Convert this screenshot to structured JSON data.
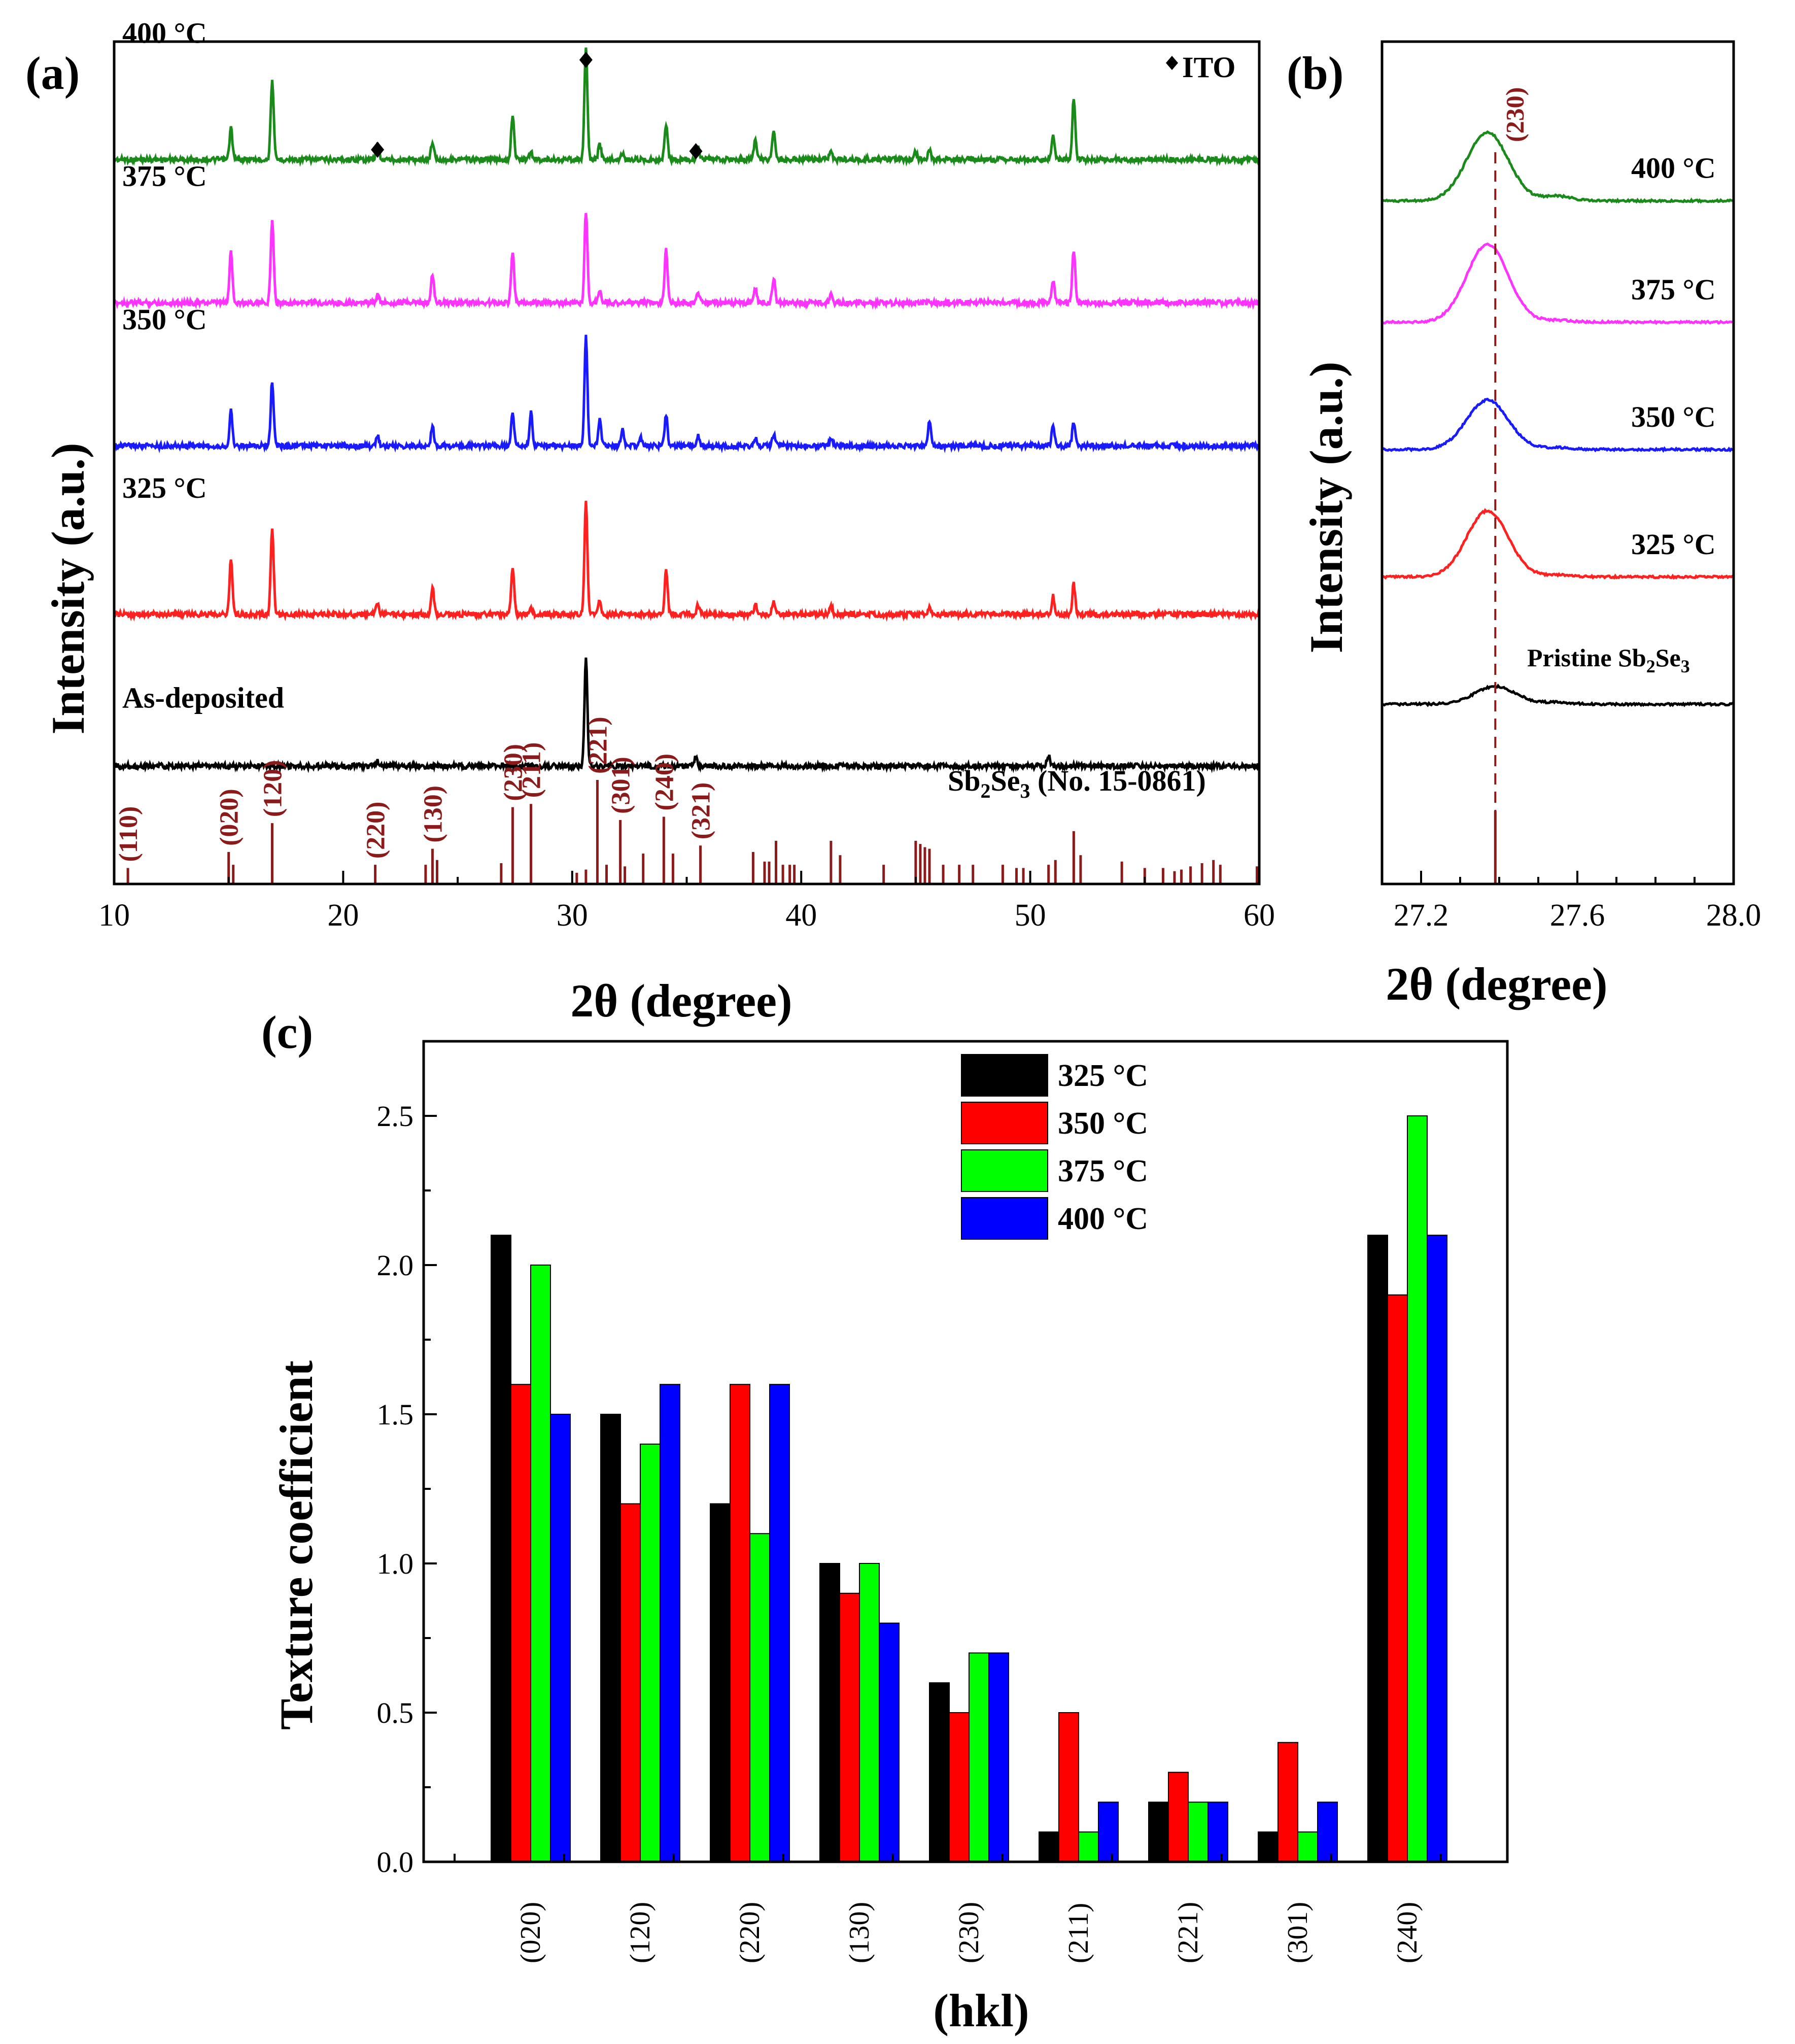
{
  "colors": {
    "black": "#000000",
    "red": "#ff0000",
    "blue": "#0000ff",
    "green": "#00ff00",
    "dark_green": "#1a8a1a",
    "magenta": "#ff33ff",
    "xrd_blue": "#1a1aff",
    "xrd_red": "#ff2020",
    "ref_red": "#8b1a1a"
  },
  "chart_data": [
    {
      "panel": "(a)",
      "type": "line",
      "xlabel": "2θ (degree)",
      "ylabel": "Intensity (a.u.)",
      "xlim": [
        10,
        60
      ],
      "xticks": [
        10,
        20,
        30,
        40,
        50,
        60
      ],
      "ito_legend": "ITO",
      "ito_marker_positions": [
        21.5,
        30.6,
        35.4
      ],
      "series": [
        {
          "name": "400 °C",
          "color": "#1a8a1a",
          "baseline": 0.14,
          "peaks": [
            [
              15.1,
              0.21
            ],
            [
              16.9,
              0.53
            ],
            [
              21.5,
              0.1
            ],
            [
              23.9,
              0.12
            ],
            [
              27.4,
              0.3
            ],
            [
              28.2,
              0.05
            ],
            [
              30.6,
              0.75
            ],
            [
              31.2,
              0.1
            ],
            [
              32.2,
              0.04
            ],
            [
              34.1,
              0.24
            ],
            [
              35.5,
              0.08
            ],
            [
              38.0,
              0.14
            ],
            [
              38.8,
              0.2
            ],
            [
              41.3,
              0.05
            ],
            [
              45.0,
              0.05
            ],
            [
              45.6,
              0.07
            ],
            [
              51.0,
              0.16
            ],
            [
              51.9,
              0.4
            ]
          ]
        },
        {
          "name": "375 °C",
          "color": "#ff33ff",
          "baseline": 0.31,
          "peaks": [
            [
              15.1,
              0.34
            ],
            [
              16.9,
              0.55
            ],
            [
              21.5,
              0.05
            ],
            [
              23.9,
              0.18
            ],
            [
              27.4,
              0.33
            ],
            [
              30.6,
              0.6
            ],
            [
              31.2,
              0.09
            ],
            [
              34.1,
              0.35
            ],
            [
              35.5,
              0.07
            ],
            [
              38.0,
              0.1
            ],
            [
              38.8,
              0.16
            ],
            [
              41.3,
              0.06
            ],
            [
              51.0,
              0.14
            ],
            [
              51.9,
              0.35
            ]
          ]
        },
        {
          "name": "350 °C",
          "color": "#1a1aff",
          "baseline": 0.48,
          "peaks": [
            [
              15.1,
              0.23
            ],
            [
              16.9,
              0.43
            ],
            [
              21.5,
              0.07
            ],
            [
              23.9,
              0.13
            ],
            [
              27.4,
              0.22
            ],
            [
              28.2,
              0.22
            ],
            [
              30.6,
              0.72
            ],
            [
              31.2,
              0.18
            ],
            [
              32.2,
              0.11
            ],
            [
              33.0,
              0.05
            ],
            [
              34.1,
              0.2
            ],
            [
              35.5,
              0.07
            ],
            [
              38.0,
              0.05
            ],
            [
              38.8,
              0.08
            ],
            [
              41.3,
              0.05
            ],
            [
              45.6,
              0.17
            ],
            [
              51.0,
              0.13
            ],
            [
              51.9,
              0.16
            ]
          ]
        },
        {
          "name": "325 °C",
          "color": "#ff2020",
          "baseline": 0.68,
          "peaks": [
            [
              15.1,
              0.37
            ],
            [
              16.9,
              0.57
            ],
            [
              21.5,
              0.07
            ],
            [
              23.9,
              0.18
            ],
            [
              27.4,
              0.31
            ],
            [
              28.2,
              0.04
            ],
            [
              30.6,
              0.75
            ],
            [
              31.2,
              0.1
            ],
            [
              34.1,
              0.29
            ],
            [
              35.5,
              0.06
            ],
            [
              38.0,
              0.06
            ],
            [
              38.8,
              0.08
            ],
            [
              41.3,
              0.06
            ],
            [
              45.6,
              0.05
            ],
            [
              51.0,
              0.12
            ],
            [
              51.9,
              0.2
            ]
          ]
        },
        {
          "name": "As-deposited",
          "color": "#000000",
          "baseline": 0.86,
          "peaks": [
            [
              21.5,
              0.03
            ],
            [
              30.6,
              0.7
            ],
            [
              35.4,
              0.06
            ],
            [
              50.8,
              0.07
            ]
          ]
        }
      ],
      "reference": {
        "label": "Sb2Se3 (No. 15-0861)",
        "label_main": "Sb",
        "label_sub1": "2",
        "label_mid": "Se",
        "label_sub2": "3",
        "label_tail": " (No. 15-0861)",
        "color": "#8b1a1a",
        "lines": [
          [
            10.6,
            0.2
          ],
          [
            15.0,
            0.4
          ],
          [
            15.2,
            0.24
          ],
          [
            16.9,
            0.76
          ],
          [
            21.4,
            0.24
          ],
          [
            23.6,
            0.24
          ],
          [
            23.9,
            0.44
          ],
          [
            24.1,
            0.3
          ],
          [
            26.9,
            0.26
          ],
          [
            27.4,
            0.96
          ],
          [
            28.2,
            1.0
          ],
          [
            30.2,
            0.14
          ],
          [
            30.6,
            0.18
          ],
          [
            31.1,
            1.3
          ],
          [
            31.5,
            0.24
          ],
          [
            32.1,
            0.8
          ],
          [
            32.3,
            0.22
          ],
          [
            33.1,
            0.38
          ],
          [
            34.0,
            0.84
          ],
          [
            34.4,
            0.38
          ],
          [
            35.6,
            0.48
          ],
          [
            37.9,
            0.4
          ],
          [
            38.4,
            0.28
          ],
          [
            38.6,
            0.28
          ],
          [
            38.9,
            0.54
          ],
          [
            39.2,
            0.24
          ],
          [
            39.5,
            0.24
          ],
          [
            39.7,
            0.24
          ],
          [
            41.3,
            0.54
          ],
          [
            41.7,
            0.36
          ],
          [
            43.6,
            0.24
          ],
          [
            45.0,
            0.54
          ],
          [
            45.2,
            0.5
          ],
          [
            45.4,
            0.46
          ],
          [
            45.6,
            0.44
          ],
          [
            46.2,
            0.24
          ],
          [
            46.9,
            0.24
          ],
          [
            47.5,
            0.24
          ],
          [
            48.8,
            0.24
          ],
          [
            49.4,
            0.2
          ],
          [
            49.7,
            0.2
          ],
          [
            50.8,
            0.24
          ],
          [
            51.1,
            0.3
          ],
          [
            51.9,
            0.66
          ],
          [
            52.2,
            0.36
          ],
          [
            54.0,
            0.28
          ],
          [
            55.0,
            0.2
          ],
          [
            55.8,
            0.2
          ],
          [
            56.3,
            0.16
          ],
          [
            56.6,
            0.18
          ],
          [
            57.0,
            0.22
          ],
          [
            57.5,
            0.26
          ],
          [
            58.0,
            0.3
          ],
          [
            58.3,
            0.24
          ],
          [
            59.9,
            0.22
          ]
        ],
        "hkl_labels": [
          {
            "label": "(110)",
            "x": 10.6
          },
          {
            "label": "(020)",
            "x": 15.0
          },
          {
            "label": "(120)",
            "x": 16.9
          },
          {
            "label": "(220)",
            "x": 21.4
          },
          {
            "label": "(130)",
            "x": 23.9
          },
          {
            "label": "(230)",
            "x": 27.4
          },
          {
            "label": "(211)",
            "x": 28.2
          },
          {
            "label": "(221)",
            "x": 31.1
          },
          {
            "label": "(301)",
            "x": 32.1
          },
          {
            "label": "(240)",
            "x": 34.0
          },
          {
            "label": "(321)",
            "x": 35.6
          }
        ]
      }
    },
    {
      "panel": "(b)",
      "type": "line",
      "xlabel": "2θ (degree)",
      "ylabel": "Intensity (a.u.)",
      "xlim": [
        27.1,
        28.0
      ],
      "xticks": [
        27.2,
        27.6,
        28.0
      ],
      "xtick_labels": [
        "27.2",
        "27.6",
        "28.0"
      ],
      "reference_line_x": 27.39,
      "reference_label": "(230)",
      "series": [
        {
          "name": "400 °C",
          "color": "#1a8a1a",
          "baseline": 0.2,
          "peak_center": 27.37,
          "peak_height": 0.58
        },
        {
          "name": "375 °C",
          "color": "#ff33ff",
          "baseline": 0.4,
          "peak_center": 27.37,
          "peak_height": 0.66
        },
        {
          "name": "350 °C",
          "color": "#1a1aff",
          "baseline": 0.61,
          "peak_center": 27.37,
          "peak_height": 0.42
        },
        {
          "name": "325 °C",
          "color": "#ff2020",
          "baseline": 0.82,
          "peak_center": 27.37,
          "peak_height": 0.56
        },
        {
          "name": "Pristine Sb2Se3",
          "label_main": "Pristine Sb",
          "label_sub1": "2",
          "label_mid": "Se",
          "label_sub2": "3",
          "color": "#000000",
          "baseline": 1.03,
          "peak_center": 27.39,
          "peak_height": 0.15
        }
      ]
    },
    {
      "panel": "(c)",
      "type": "bar",
      "xlabel": "(hkl)",
      "ylabel": "Texture coefficient",
      "ylim": [
        0,
        2.75
      ],
      "yticks": [
        0.0,
        0.5,
        1.0,
        1.5,
        2.0,
        2.5
      ],
      "ytick_labels": [
        "0.0",
        "0.5",
        "1.0",
        "1.5",
        "2.0",
        "2.5"
      ],
      "categories": [
        "(020)",
        "(120)",
        "(220)",
        "(130)",
        "(230)",
        "(211)",
        "(221)",
        "(301)",
        "(240)"
      ],
      "series": [
        {
          "name": "325 °C",
          "color": "#000000",
          "values": [
            2.1,
            1.5,
            1.2,
            1.0,
            0.6,
            0.1,
            0.2,
            0.1,
            2.1
          ]
        },
        {
          "name": "350 °C",
          "color": "#ff0000",
          "values": [
            1.6,
            1.2,
            1.6,
            0.9,
            0.5,
            0.5,
            0.3,
            0.4,
            1.9
          ]
        },
        {
          "name": "375 °C",
          "color": "#00ff00",
          "values": [
            2.0,
            1.4,
            1.1,
            1.0,
            0.7,
            0.1,
            0.2,
            0.1,
            2.5
          ]
        },
        {
          "name": "400 °C",
          "color": "#0000ff",
          "values": [
            1.5,
            1.6,
            1.6,
            0.8,
            0.7,
            0.2,
            0.2,
            0.2,
            2.1
          ]
        }
      ],
      "legend_position": "top-center"
    }
  ]
}
